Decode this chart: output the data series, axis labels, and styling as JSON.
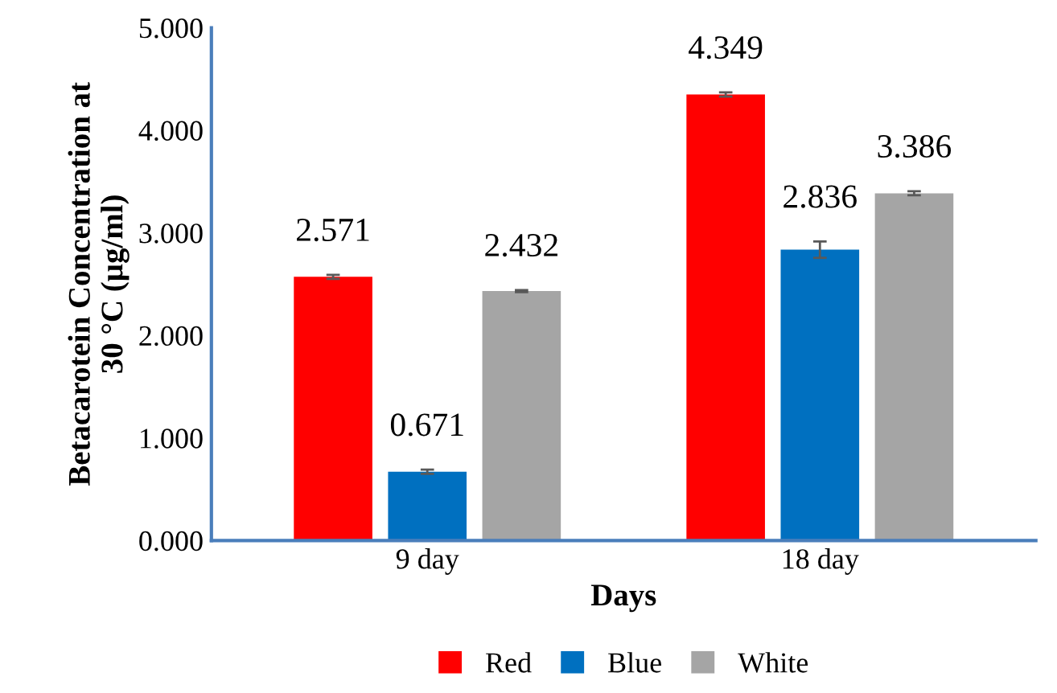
{
  "chart_data": {
    "type": "bar",
    "xlabel": "Days",
    "ylabel": "Betacarotein Concentration at\n30 °C (µg/ml)",
    "categories": [
      "9 day",
      "18 day"
    ],
    "series": [
      {
        "name": "Red",
        "color": "#ff0000",
        "values": [
          2.571,
          4.349
        ],
        "errors": [
          0.02,
          0.02
        ]
      },
      {
        "name": "Blue",
        "color": "#0070c0",
        "values": [
          0.671,
          2.836
        ],
        "errors": [
          0.02,
          0.08
        ]
      },
      {
        "name": "White",
        "color": "#a5a5a5",
        "values": [
          2.432,
          3.386
        ],
        "errors": [
          0.01,
          0.02
        ]
      }
    ],
    "ylim": [
      0,
      5
    ],
    "yticks": [
      {
        "value": 0,
        "label": "0.000"
      },
      {
        "value": 1,
        "label": "1.000"
      },
      {
        "value": 2,
        "label": "2.000"
      },
      {
        "value": 3,
        "label": "3.000"
      },
      {
        "value": 4,
        "label": "4.000"
      },
      {
        "value": 5,
        "label": "5.000"
      }
    ],
    "data_labels": true,
    "legend": "bottom",
    "grid": false
  }
}
